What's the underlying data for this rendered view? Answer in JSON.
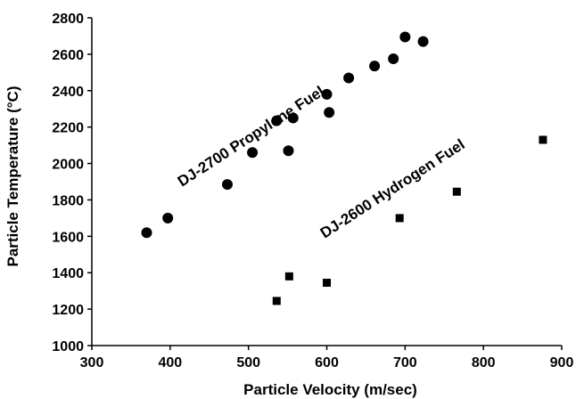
{
  "chart_data": {
    "type": "scatter",
    "title": "",
    "xlabel": "Particle Velocity (m/sec)",
    "ylabel": "Particle Temperature (°C)",
    "xlim": [
      300,
      900
    ],
    "ylim": [
      1000,
      2800
    ],
    "xticks": [
      300,
      400,
      500,
      600,
      700,
      800,
      900
    ],
    "yticks": [
      1000,
      1200,
      1400,
      1600,
      1800,
      2000,
      2200,
      2400,
      2600,
      2800
    ],
    "grid": false,
    "legend": "none",
    "series": [
      {
        "marker": "circle",
        "color": "#000000",
        "annotation": "DJ-2700 Propylene Fuel",
        "points": [
          [
            370,
            1620
          ],
          [
            397,
            1700
          ],
          [
            473,
            1885
          ],
          [
            505,
            2060
          ],
          [
            536,
            2235
          ],
          [
            551,
            2070
          ],
          [
            557,
            2250
          ],
          [
            600,
            2380
          ],
          [
            603,
            2280
          ],
          [
            628,
            2470
          ],
          [
            661,
            2535
          ],
          [
            685,
            2575
          ],
          [
            700,
            2695
          ],
          [
            723,
            2670
          ]
        ]
      },
      {
        "marker": "square",
        "color": "#000000",
        "annotation": "DJ-2600 Hydrogen Fuel",
        "points": [
          [
            536,
            1245
          ],
          [
            552,
            1380
          ],
          [
            600,
            1345
          ],
          [
            693,
            1700
          ],
          [
            766,
            1845
          ],
          [
            876,
            2130
          ]
        ]
      }
    ]
  }
}
